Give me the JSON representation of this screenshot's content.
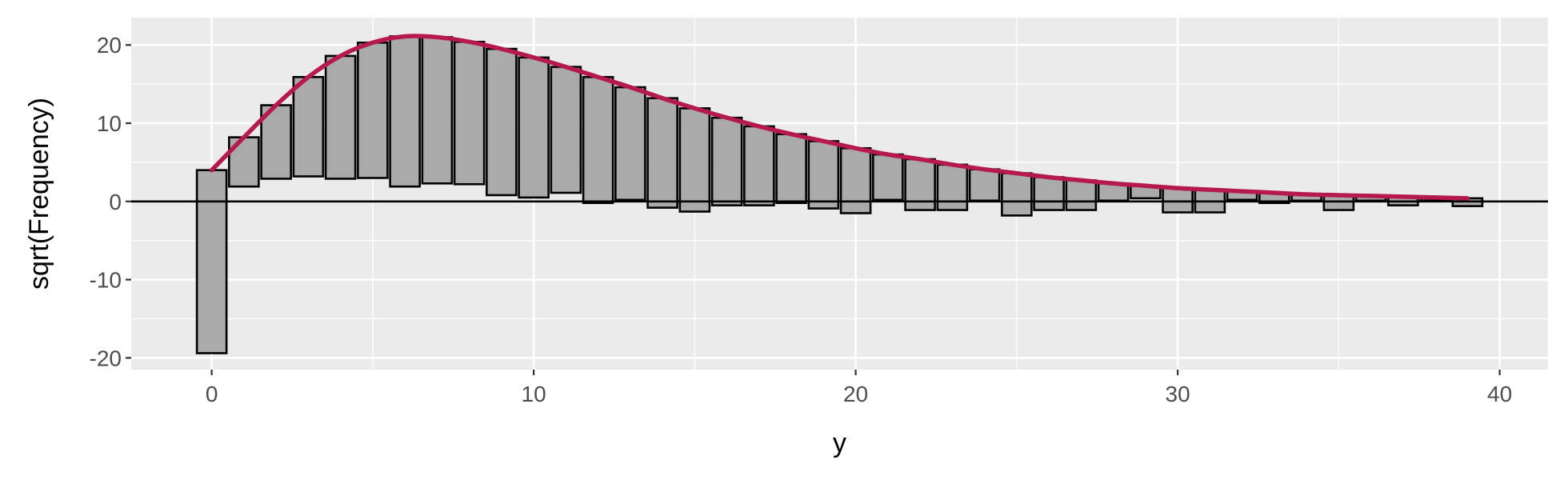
{
  "chart_data": {
    "type": "bar",
    "subtype": "hanging-rootogram",
    "xlabel": "y",
    "ylabel": "sqrt(Frequency)",
    "xlim": [
      -2.5,
      41.5
    ],
    "ylim": [
      -21.5,
      23.5
    ],
    "x_ticks": [
      0,
      10,
      20,
      30,
      40
    ],
    "y_ticks": [
      -20,
      -10,
      0,
      10,
      20
    ],
    "x_tick_labels": [
      "0",
      "10",
      "20",
      "30",
      "40"
    ],
    "y_tick_labels": [
      "-20",
      "-10",
      "0",
      "10",
      "20"
    ],
    "grid": true,
    "legend": "none",
    "reference_line_y": 0,
    "bars": {
      "x": [
        0,
        1,
        2,
        3,
        4,
        5,
        6,
        7,
        8,
        9,
        10,
        11,
        12,
        13,
        14,
        15,
        16,
        17,
        18,
        19,
        20,
        21,
        22,
        23,
        24,
        25,
        26,
        27,
        28,
        29,
        30,
        31,
        32,
        33,
        34,
        35,
        36,
        37,
        38,
        39
      ],
      "top": [
        4.0,
        8.2,
        12.3,
        15.9,
        18.6,
        20.3,
        21.1,
        21.0,
        20.4,
        19.5,
        18.4,
        17.2,
        15.9,
        14.6,
        13.2,
        11.9,
        10.7,
        9.6,
        8.6,
        7.7,
        6.8,
        6.0,
        5.4,
        4.7,
        4.1,
        3.6,
        3.1,
        2.7,
        2.3,
        2.0,
        1.7,
        1.5,
        1.3,
        1.1,
        0.9,
        0.8,
        0.7,
        0.6,
        0.5,
        0.4
      ],
      "bottom": [
        -19.4,
        1.9,
        2.9,
        3.2,
        2.9,
        3.0,
        1.9,
        2.3,
        2.2,
        0.8,
        0.5,
        1.1,
        -0.2,
        0.2,
        -0.8,
        -1.3,
        -0.5,
        -0.5,
        -0.2,
        -0.9,
        -1.5,
        0.2,
        -1.1,
        -1.1,
        0.1,
        -1.8,
        -1.1,
        -1.1,
        0.1,
        0.4,
        -1.4,
        -1.4,
        0.2,
        -0.2,
        0.1,
        -1.1,
        0.1,
        -0.5,
        0.1,
        -0.6
      ]
    },
    "fitted_curve": {
      "x": [
        0,
        1,
        2,
        3,
        4,
        5,
        6,
        7,
        8,
        9,
        10,
        11,
        12,
        13,
        14,
        15,
        16,
        17,
        18,
        19,
        20,
        21,
        22,
        23,
        24,
        25,
        26,
        27,
        28,
        29,
        30,
        31,
        32,
        33,
        34,
        35,
        36,
        37,
        38,
        39
      ],
      "y": [
        4.0,
        8.2,
        12.3,
        15.9,
        18.6,
        20.3,
        21.1,
        21.0,
        20.4,
        19.5,
        18.4,
        17.2,
        15.9,
        14.6,
        13.2,
        11.9,
        10.7,
        9.6,
        8.6,
        7.7,
        6.8,
        6.0,
        5.4,
        4.7,
        4.1,
        3.6,
        3.1,
        2.7,
        2.3,
        2.0,
        1.7,
        1.5,
        1.3,
        1.1,
        0.9,
        0.8,
        0.7,
        0.6,
        0.5,
        0.4
      ]
    }
  },
  "colors": {
    "panel_background": "#ebebeb",
    "grid_major": "#ffffff",
    "bar_fill": "#aaaaaa",
    "bar_outline": "#000000",
    "curve": "#b5194f",
    "zero_line": "#000000",
    "tick_text": "#4d4d4d",
    "axis_title_text": "#000000"
  }
}
